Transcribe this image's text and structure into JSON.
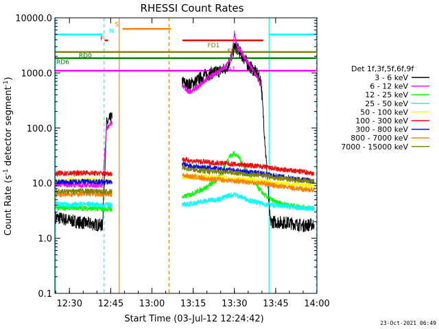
{
  "chart_data": {
    "type": "line",
    "title": "RHESSI Count Rates",
    "xlabel": "Start Time (03-Jul-12 12:24:42)",
    "ylabel_pre": "Count Rate (s",
    "ylabel_sup1": "-1",
    "ylabel_mid": " detector segment",
    "ylabel_sup2": "-1",
    "ylabel_post": ")",
    "ylog": true,
    "xlim": [
      744.7,
      840.0
    ],
    "ylim": [
      0.1,
      10000.0
    ],
    "xticks": [
      {
        "v": 750,
        "label": "12:30"
      },
      {
        "v": 765,
        "label": "12:45"
      },
      {
        "v": 780,
        "label": "13:00"
      },
      {
        "v": 795,
        "label": "13:15"
      },
      {
        "v": 810,
        "label": "13:30"
      },
      {
        "v": 825,
        "label": "13:45"
      },
      {
        "v": 840,
        "label": "14:00"
      }
    ],
    "yticks": [
      {
        "v": 0.1,
        "label": "0.1"
      },
      {
        "v": 1.0,
        "label": "1.0"
      },
      {
        "v": 10.0,
        "label": "10.0"
      },
      {
        "v": 100.0,
        "label": "100.0"
      },
      {
        "v": 1000.0,
        "label": "1000.0"
      },
      {
        "v": 10000.0,
        "label": "10000.0"
      }
    ],
    "legend_title": "Det 1f,3f,5f,6f,9f",
    "legend_position": "right",
    "series": [
      {
        "name": "3 - 6 keV",
        "color": "#000000",
        "points": [
          [
            745,
            2.4
          ],
          [
            750,
            2.1
          ],
          [
            755,
            1.9
          ],
          [
            762,
            1.7
          ],
          [
            763.5,
            120
          ],
          [
            765,
            150
          ],
          [
            765.5,
            150
          ],
          [
            791,
            700
          ],
          [
            793,
            600
          ],
          [
            796,
            700
          ],
          [
            799,
            900
          ],
          [
            802,
            1000
          ],
          [
            805,
            1100
          ],
          [
            807,
            1200
          ],
          [
            809,
            2000
          ],
          [
            810,
            3000
          ],
          [
            811,
            2800
          ],
          [
            813,
            2000
          ],
          [
            815,
            1400
          ],
          [
            818,
            1000
          ],
          [
            819.7,
            700
          ],
          [
            823,
            2.0
          ],
          [
            830,
            1.9
          ],
          [
            835,
            1.7
          ],
          [
            839,
            1.8
          ]
        ]
      },
      {
        "name": "6 - 12 keV",
        "color": "#ff00ff",
        "points": [
          [
            745,
            9.5
          ],
          [
            750,
            9.4
          ],
          [
            755,
            9.2
          ],
          [
            762,
            9.0
          ],
          [
            763.5,
            100
          ],
          [
            765,
            120
          ],
          [
            765.5,
            120
          ],
          [
            791,
            600
          ],
          [
            793,
            450
          ],
          [
            796,
            520
          ],
          [
            799,
            700
          ],
          [
            802,
            900
          ],
          [
            805,
            1150
          ],
          [
            807,
            1300
          ],
          [
            809,
            2000
          ],
          [
            810,
            5500
          ],
          [
            811,
            3000
          ],
          [
            813,
            2200
          ],
          [
            815,
            1500
          ],
          [
            818,
            900
          ],
          [
            819.7,
            600
          ]
        ]
      },
      {
        "name": "12 - 25 keV",
        "color": "#00ff00",
        "points": [
          [
            745,
            3.5
          ],
          [
            750,
            3.6
          ],
          [
            755,
            3.5
          ],
          [
            762,
            3.4
          ],
          [
            765.5,
            3.4
          ],
          [
            791,
            5.5
          ],
          [
            795,
            6.5
          ],
          [
            800,
            8.5
          ],
          [
            804,
            12
          ],
          [
            806,
            18
          ],
          [
            808,
            30
          ],
          [
            810,
            35
          ],
          [
            812,
            28
          ],
          [
            815,
            15
          ],
          [
            818,
            9
          ],
          [
            821,
            6
          ],
          [
            825,
            4.5
          ],
          [
            830,
            4.0
          ],
          [
            835,
            3.6
          ],
          [
            839,
            3.5
          ]
        ]
      },
      {
        "name": "25 - 50 keV",
        "color": "#00ffff",
        "points": [
          [
            745,
            4.2
          ],
          [
            750,
            4.0
          ],
          [
            755,
            4.2
          ],
          [
            762,
            4.0
          ],
          [
            765.5,
            4.1
          ],
          [
            791,
            4.0
          ],
          [
            795,
            4.3
          ],
          [
            800,
            4.8
          ],
          [
            805,
            5.2
          ],
          [
            808,
            6.0
          ],
          [
            810,
            6.2
          ],
          [
            813,
            5.5
          ],
          [
            816,
            4.8
          ],
          [
            820,
            4.2
          ],
          [
            825,
            4.0
          ],
          [
            830,
            3.7
          ],
          [
            835,
            3.5
          ],
          [
            839,
            3.5
          ]
        ]
      },
      {
        "name": "50 - 100 keV",
        "color": "#ffff00",
        "points": [
          [
            745,
            11
          ],
          [
            750,
            11
          ],
          [
            755,
            11.5
          ],
          [
            762,
            11
          ],
          [
            765.5,
            11
          ],
          [
            791,
            13
          ],
          [
            795,
            13
          ],
          [
            800,
            13
          ],
          [
            805,
            12.5
          ],
          [
            810,
            12
          ],
          [
            815,
            11.5
          ],
          [
            820,
            11
          ],
          [
            825,
            10
          ],
          [
            830,
            9.5
          ],
          [
            835,
            9.2
          ],
          [
            839,
            9.0
          ]
        ]
      },
      {
        "name": "100 - 300 keV",
        "color": "#ff0000",
        "points": [
          [
            745,
            15
          ],
          [
            750,
            15
          ],
          [
            755,
            15.5
          ],
          [
            762,
            15
          ],
          [
            765.5,
            15
          ],
          [
            791,
            27
          ],
          [
            795,
            25
          ],
          [
            800,
            24
          ],
          [
            805,
            23
          ],
          [
            810,
            22
          ],
          [
            815,
            21
          ],
          [
            820,
            20
          ],
          [
            825,
            18
          ],
          [
            830,
            17
          ],
          [
            835,
            16
          ],
          [
            839,
            15
          ]
        ]
      },
      {
        "name": "300 - 800 keV",
        "color": "#0000ff",
        "points": [
          [
            745,
            10.5
          ],
          [
            750,
            10.5
          ],
          [
            755,
            10.8
          ],
          [
            762,
            10.5
          ],
          [
            765.5,
            10.5
          ],
          [
            791,
            22
          ],
          [
            795,
            20
          ],
          [
            800,
            19
          ],
          [
            805,
            18
          ],
          [
            810,
            17
          ],
          [
            815,
            16
          ],
          [
            820,
            15
          ],
          [
            825,
            13.5
          ],
          [
            830,
            12.5
          ],
          [
            835,
            11.5
          ],
          [
            839,
            11
          ]
        ]
      },
      {
        "name": "800 - 7000 keV",
        "color": "#ff8000",
        "points": [
          [
            745,
            6.2
          ],
          [
            750,
            6.2
          ],
          [
            755,
            6.5
          ],
          [
            762,
            6.3
          ],
          [
            765.5,
            6.3
          ],
          [
            791,
            14
          ],
          [
            795,
            13
          ],
          [
            800,
            12
          ],
          [
            805,
            11.5
          ],
          [
            810,
            11
          ],
          [
            815,
            10.5
          ],
          [
            820,
            10
          ],
          [
            825,
            9
          ],
          [
            830,
            8.3
          ],
          [
            835,
            7.8
          ],
          [
            839,
            7.5
          ]
        ]
      },
      {
        "name": "7000 - 15000 keV",
        "color": "#808000",
        "points": [
          [
            745,
            7.0
          ],
          [
            750,
            7.0
          ],
          [
            755,
            7.2
          ],
          [
            762,
            7.0
          ],
          [
            765.5,
            7.0
          ],
          [
            791,
            19
          ],
          [
            795,
            17.5
          ],
          [
            800,
            16.5
          ],
          [
            805,
            16
          ],
          [
            810,
            15.5
          ],
          [
            815,
            14.5
          ],
          [
            820,
            14
          ],
          [
            825,
            12.5
          ],
          [
            830,
            11.8
          ],
          [
            835,
            11.2
          ],
          [
            839,
            10.8
          ]
        ]
      }
    ],
    "vlines": [
      {
        "x": 744.9,
        "color": "#00ffff",
        "style": "solid"
      },
      {
        "x": 762.6,
        "color": "#00ffff",
        "style": "dashed"
      },
      {
        "x": 768.1,
        "color": "#ff8000",
        "style": "solid"
      },
      {
        "x": 786.2,
        "color": "#ff8000",
        "style": "dashed"
      },
      {
        "x": 822.6,
        "color": "#00ffff",
        "style": "solid"
      },
      {
        "x": 839.8,
        "color": "#00ffff",
        "style": "dashed"
      }
    ],
    "hbars": [
      {
        "x0": 744.7,
        "x1": 762.1,
        "y": 5000,
        "color": "#00ffff"
      },
      {
        "x0": 822.8,
        "x1": 839.7,
        "y": 5000,
        "color": "#00ffff"
      },
      {
        "x0": 769.3,
        "x1": 786.9,
        "y": 6300,
        "color": "#ff8000"
      },
      {
        "x0": 762.8,
        "x1": 764.0,
        "y": 3900,
        "color": "#ff0000"
      },
      {
        "x0": 791.1,
        "x1": 820.5,
        "y": 3900,
        "color": "#ff0000"
      },
      {
        "x0": 744.7,
        "x1": 839.7,
        "y": 2400,
        "color": "#808000"
      },
      {
        "x0": 744.7,
        "x1": 839.7,
        "y": 1850,
        "color": "#008000"
      },
      {
        "x0": 744.7,
        "x1": 839.7,
        "y": 1100,
        "color": "#ff00ff"
      }
    ],
    "annotations": [
      {
        "text": "S",
        "x": 766.5,
        "y": 7000,
        "color": "#ff8000"
      },
      {
        "text": "N",
        "x": 764.5,
        "y": 5300,
        "color": "#00ffff"
      },
      {
        "text": "F",
        "x": 761.2,
        "y": 3900,
        "color": "#ff0000"
      },
      {
        "text": "FD1",
        "x": 800.2,
        "y": 2900,
        "color": "#808000"
      },
      {
        "text": "FD3",
        "x": 807.4,
        "y": 2300,
        "color": "#808000"
      },
      {
        "text": "RD0",
        "x": 753.4,
        "y": 1900,
        "color": "#008000"
      },
      {
        "text": "RD6",
        "x": 745.2,
        "y": 1450,
        "color": "#008000"
      },
      {
        "text": "A1",
        "x": 807.5,
        "y": 1080,
        "color": "#ff00ff"
      }
    ]
  },
  "timestamp": "23-Oct-2021 06:49"
}
